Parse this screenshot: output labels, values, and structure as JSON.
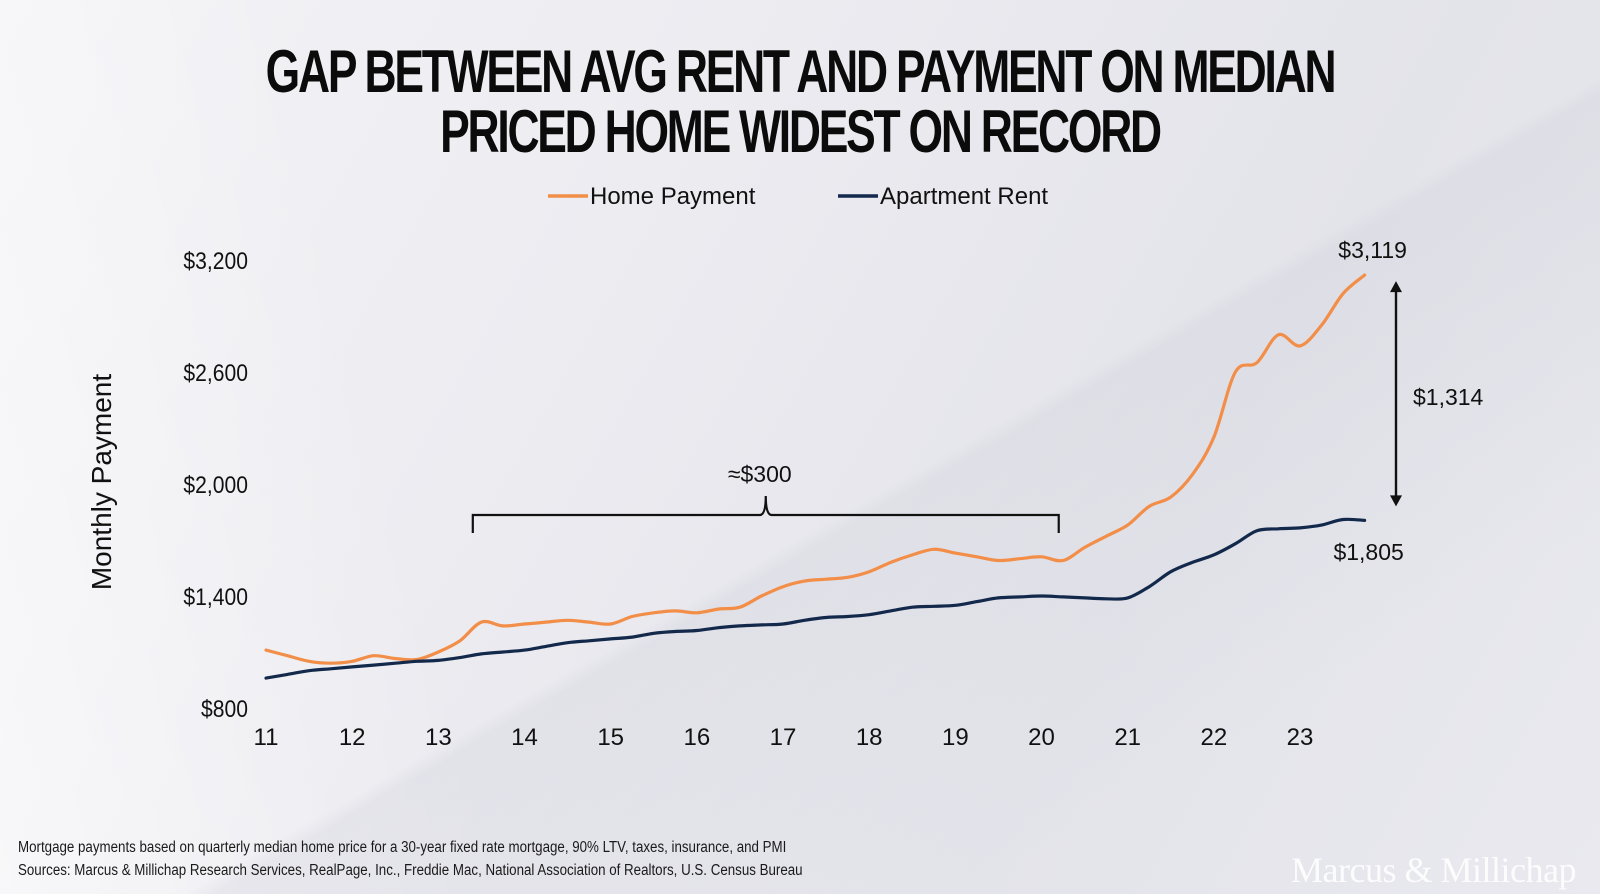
{
  "title": "GAP BETWEEN AVG RENT AND PAYMENT ON MEDIAN PRICED HOME WIDEST ON RECORD",
  "footnotes": [
    "Mortgage payments based on quarterly median home price for a 30-year fixed rate mortgage, 90% LTV, taxes, insurance, and PMI",
    "Sources: Marcus & Millichap Research Services, RealPage, Inc., Freddie Mac, National Association of Realtors, U.S. Census Bureau"
  ],
  "logo_text": "Marcus & Millichap",
  "chart_data": {
    "type": "line",
    "title": "",
    "ylabel": "Monthly Payment",
    "xlabel": "",
    "ylim": [
      800,
      3200
    ],
    "xlim": [
      2011,
      2023.75
    ],
    "yticks": [
      800,
      1400,
      2000,
      2600,
      3200
    ],
    "ytick_labels": [
      "$800",
      "$1,400",
      "$2,000",
      "$2,600",
      "$3,200"
    ],
    "xticks": [
      2011,
      2012,
      2013,
      2014,
      2015,
      2016,
      2017,
      2018,
      2019,
      2020,
      2021,
      2022,
      2023
    ],
    "xtick_labels": [
      "11",
      "12",
      "13",
      "14",
      "15",
      "16",
      "17",
      "18",
      "19",
      "20",
      "21",
      "22",
      "23"
    ],
    "grid": false,
    "legend_position": "top-center",
    "series": [
      {
        "name": "Home Payment",
        "color": "#f28e48",
        "points": [
          [
            2011.0,
            1110
          ],
          [
            2011.25,
            1080
          ],
          [
            2011.5,
            1050
          ],
          [
            2011.75,
            1040
          ],
          [
            2012.0,
            1050
          ],
          [
            2012.25,
            1080
          ],
          [
            2012.5,
            1065
          ],
          [
            2012.75,
            1060
          ],
          [
            2013.0,
            1100
          ],
          [
            2013.25,
            1160
          ],
          [
            2013.5,
            1260
          ],
          [
            2013.75,
            1240
          ],
          [
            2014.0,
            1250
          ],
          [
            2014.25,
            1260
          ],
          [
            2014.5,
            1270
          ],
          [
            2014.75,
            1260
          ],
          [
            2015.0,
            1250
          ],
          [
            2015.25,
            1290
          ],
          [
            2015.5,
            1310
          ],
          [
            2015.75,
            1320
          ],
          [
            2016.0,
            1310
          ],
          [
            2016.25,
            1330
          ],
          [
            2016.5,
            1340
          ],
          [
            2016.75,
            1400
          ],
          [
            2017.0,
            1450
          ],
          [
            2017.25,
            1480
          ],
          [
            2017.5,
            1490
          ],
          [
            2017.75,
            1500
          ],
          [
            2018.0,
            1530
          ],
          [
            2018.25,
            1580
          ],
          [
            2018.5,
            1620
          ],
          [
            2018.75,
            1650
          ],
          [
            2019.0,
            1630
          ],
          [
            2019.25,
            1610
          ],
          [
            2019.5,
            1590
          ],
          [
            2019.75,
            1600
          ],
          [
            2020.0,
            1610
          ],
          [
            2020.25,
            1590
          ],
          [
            2020.5,
            1660
          ],
          [
            2020.75,
            1720
          ],
          [
            2021.0,
            1780
          ],
          [
            2021.25,
            1880
          ],
          [
            2021.5,
            1930
          ],
          [
            2021.75,
            2050
          ],
          [
            2022.0,
            2250
          ],
          [
            2022.25,
            2600
          ],
          [
            2022.5,
            2650
          ],
          [
            2022.75,
            2800
          ],
          [
            2023.0,
            2740
          ],
          [
            2023.25,
            2850
          ],
          [
            2023.5,
            3020
          ],
          [
            2023.75,
            3119
          ]
        ]
      },
      {
        "name": "Apartment Rent",
        "color": "#13294b",
        "points": [
          [
            2011.0,
            960
          ],
          [
            2011.25,
            980
          ],
          [
            2011.5,
            1000
          ],
          [
            2011.75,
            1010
          ],
          [
            2012.0,
            1020
          ],
          [
            2012.25,
            1030
          ],
          [
            2012.5,
            1040
          ],
          [
            2012.75,
            1050
          ],
          [
            2013.0,
            1055
          ],
          [
            2013.25,
            1070
          ],
          [
            2013.5,
            1090
          ],
          [
            2013.75,
            1100
          ],
          [
            2014.0,
            1110
          ],
          [
            2014.25,
            1130
          ],
          [
            2014.5,
            1150
          ],
          [
            2014.75,
            1160
          ],
          [
            2015.0,
            1170
          ],
          [
            2015.25,
            1180
          ],
          [
            2015.5,
            1200
          ],
          [
            2015.75,
            1210
          ],
          [
            2016.0,
            1215
          ],
          [
            2016.25,
            1230
          ],
          [
            2016.5,
            1240
          ],
          [
            2016.75,
            1245
          ],
          [
            2017.0,
            1250
          ],
          [
            2017.25,
            1270
          ],
          [
            2017.5,
            1285
          ],
          [
            2017.75,
            1290
          ],
          [
            2018.0,
            1300
          ],
          [
            2018.25,
            1320
          ],
          [
            2018.5,
            1340
          ],
          [
            2018.75,
            1345
          ],
          [
            2019.0,
            1350
          ],
          [
            2019.25,
            1370
          ],
          [
            2019.5,
            1390
          ],
          [
            2019.75,
            1395
          ],
          [
            2020.0,
            1400
          ],
          [
            2020.25,
            1395
          ],
          [
            2020.5,
            1390
          ],
          [
            2020.75,
            1385
          ],
          [
            2021.0,
            1390
          ],
          [
            2021.25,
            1450
          ],
          [
            2021.5,
            1530
          ],
          [
            2021.75,
            1580
          ],
          [
            2022.0,
            1620
          ],
          [
            2022.25,
            1680
          ],
          [
            2022.5,
            1750
          ],
          [
            2022.75,
            1760
          ],
          [
            2023.0,
            1765
          ],
          [
            2023.25,
            1780
          ],
          [
            2023.5,
            1810
          ],
          [
            2023.75,
            1805
          ]
        ]
      }
    ],
    "annotations": {
      "end_home_label": "$3,119",
      "end_rent_label": "$1,805",
      "gap_label": "$1,314",
      "bracket_label": "≈$300",
      "bracket_range": [
        2013.4,
        2020.2
      ]
    }
  }
}
